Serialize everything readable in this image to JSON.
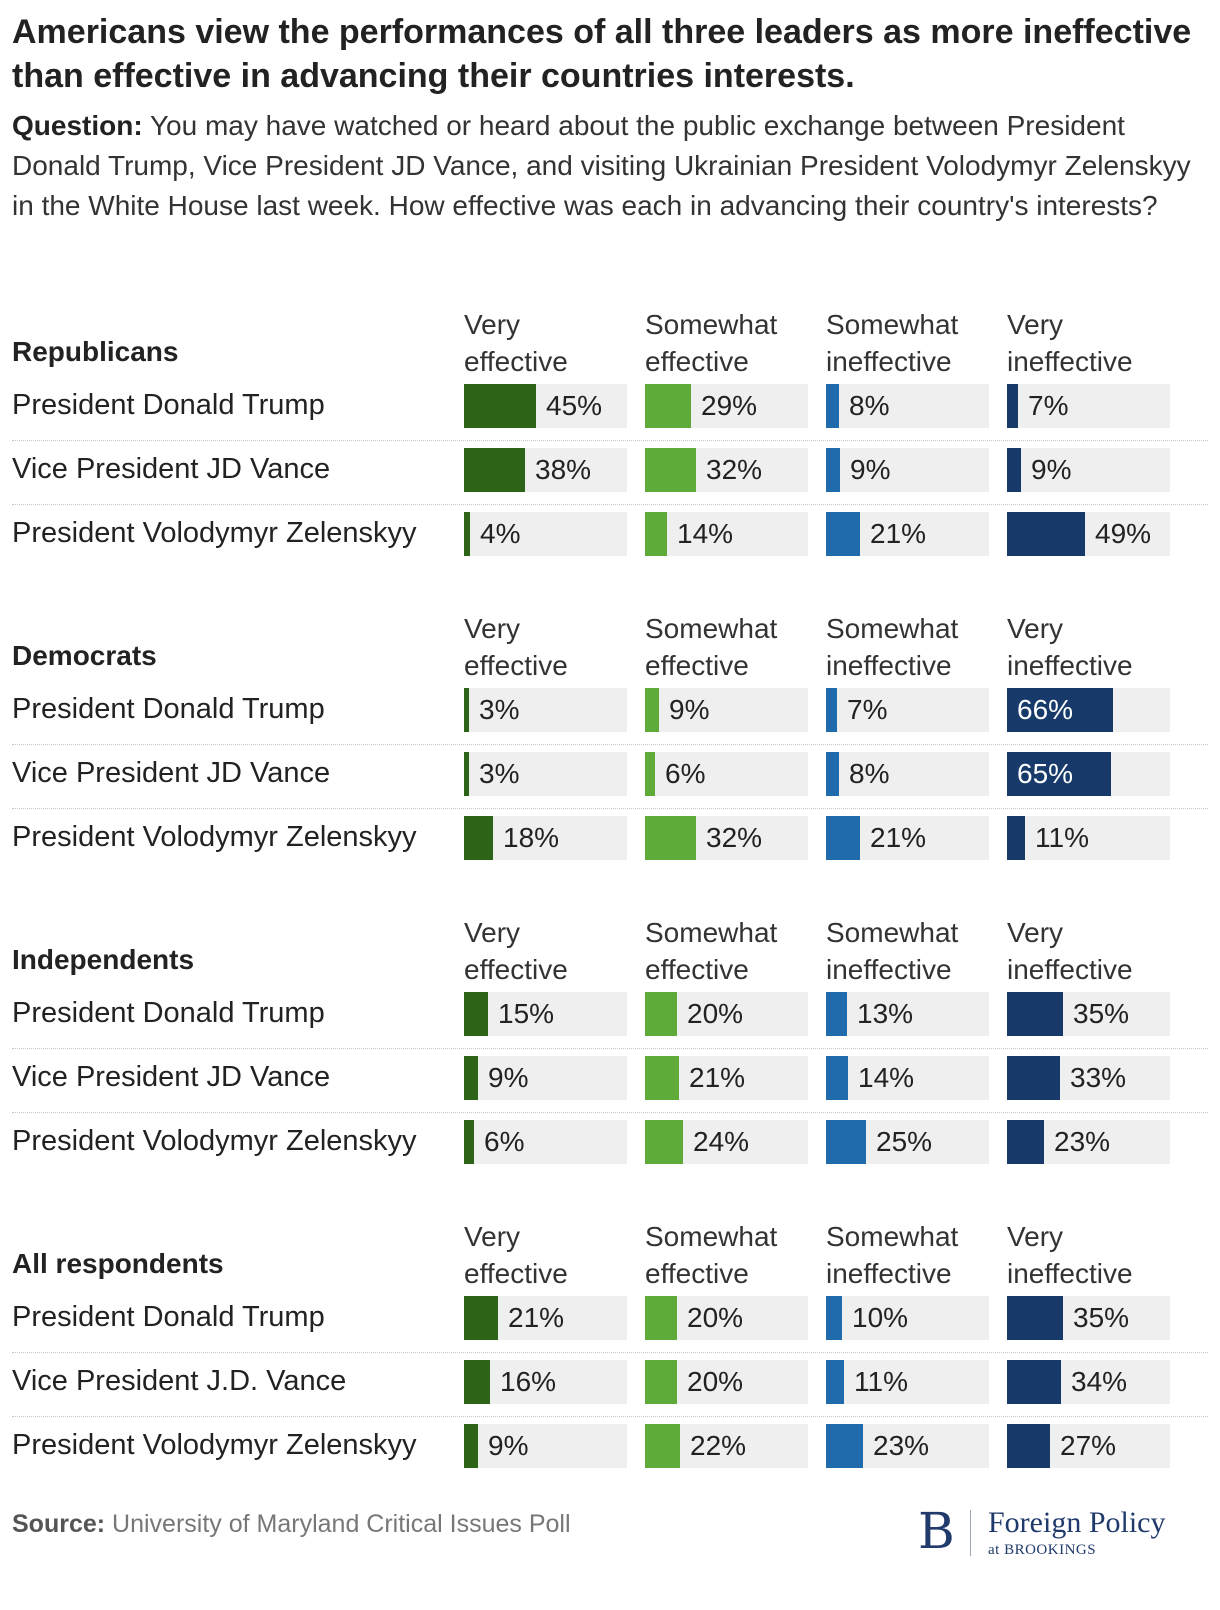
{
  "title": "Americans view the performances of all three leaders as more ineffective than effective in advancing their countries interests.",
  "question": {
    "prefix": "Question:",
    "text": " You may have watched or heard about the public exchange between President Donald Trump, Vice President JD Vance, and visiting Ukrainian President Volodymyr Zelenskyy in the White House last week. How effective was each in advancing their country's interests?"
  },
  "colors": {
    "very_effective": "#2e6417",
    "somewhat_effective": "#5fab3a",
    "somewhat_ineffective": "#1f6bac",
    "very_ineffective": "#173a6b",
    "track": "#efefef"
  },
  "chart_data": {
    "type": "bar",
    "title": "Americans view the performances of all three leaders as more ineffective than effective in advancing their countries interests.",
    "columns": [
      {
        "line1": "Very",
        "line2": "effective"
      },
      {
        "line1": "Somewhat",
        "line2": "effective"
      },
      {
        "line1": "Somewhat",
        "line2": "ineffective"
      },
      {
        "line1": "Very",
        "line2": "ineffective"
      }
    ],
    "value_suffix": "%",
    "max_value": 100,
    "groups": [
      {
        "name": "Republicans",
        "rows": [
          {
            "label": "President Donald Trump",
            "values": [
              45,
              29,
              8,
              7
            ]
          },
          {
            "label": "Vice President JD Vance",
            "values": [
              38,
              32,
              9,
              9
            ]
          },
          {
            "label": "President Volodymyr Zelenskyy",
            "values": [
              4,
              14,
              21,
              49
            ]
          }
        ]
      },
      {
        "name": "Democrats",
        "rows": [
          {
            "label": "President Donald Trump",
            "values": [
              3,
              9,
              7,
              66
            ]
          },
          {
            "label": "Vice President JD Vance",
            "values": [
              3,
              6,
              8,
              65
            ]
          },
          {
            "label": "President Volodymyr Zelenskyy",
            "values": [
              18,
              32,
              21,
              11
            ]
          }
        ]
      },
      {
        "name": "Independents",
        "rows": [
          {
            "label": "President Donald Trump",
            "values": [
              15,
              20,
              13,
              35
            ]
          },
          {
            "label": "Vice President JD Vance",
            "values": [
              9,
              21,
              14,
              33
            ]
          },
          {
            "label": "President Volodymyr Zelenskyy",
            "values": [
              6,
              24,
              25,
              23
            ]
          }
        ]
      },
      {
        "name": "All respondents",
        "rows": [
          {
            "label": "President Donald Trump",
            "values": [
              21,
              20,
              10,
              35
            ]
          },
          {
            "label": "Vice President J.D. Vance",
            "values": [
              16,
              20,
              11,
              34
            ]
          },
          {
            "label": "President Volodymyr Zelenskyy",
            "values": [
              9,
              22,
              23,
              27
            ]
          }
        ]
      }
    ]
  },
  "source": {
    "prefix": "Source:",
    "text": " University of Maryland Critical Issues Poll"
  },
  "logo": {
    "mark": "B",
    "name": "Foreign Policy",
    "sub": "at BROOKINGS"
  }
}
